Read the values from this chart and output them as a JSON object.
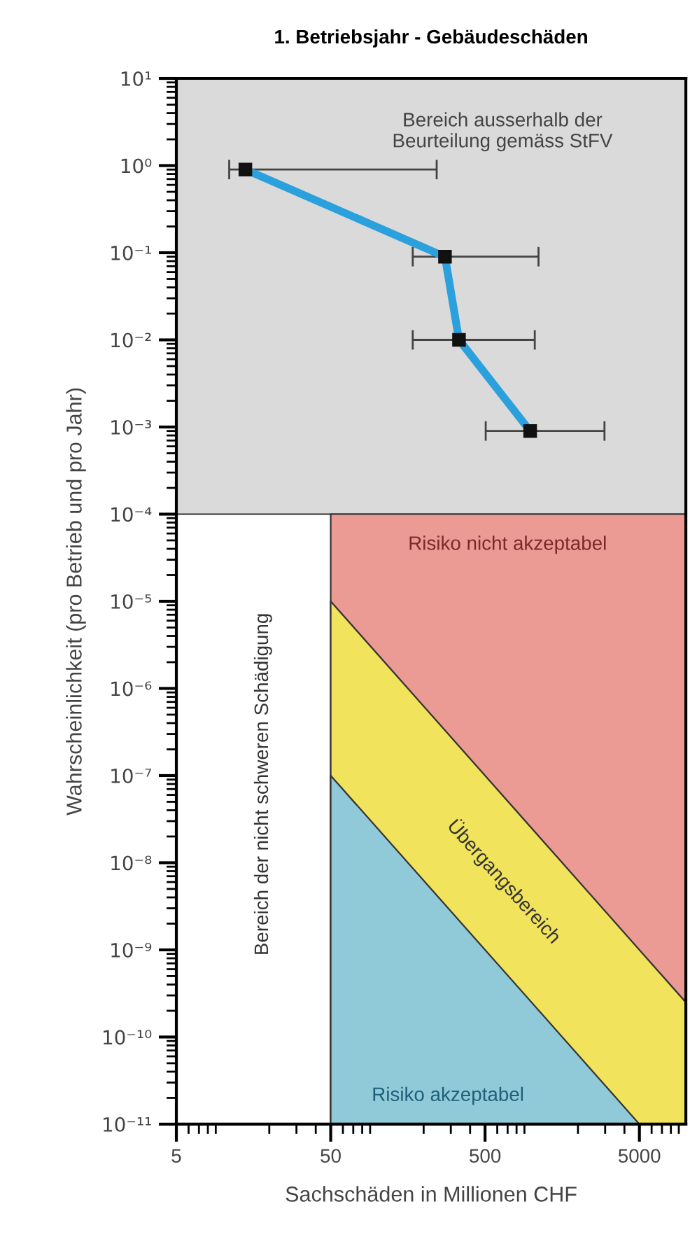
{
  "chart_data": {
    "type": "line",
    "title": "1. Betriebsjahr - Gebäudeschäden",
    "xlabel": "Sachschäden in Millionen CHF",
    "ylabel": "Wahrscheinlichkeit (pro Betrieb und pro Jahr)",
    "log": "xy",
    "xlim": [
      5,
      10000
    ],
    "ylim": [
      1e-11,
      10
    ],
    "xticks": [
      5,
      50,
      500,
      5000
    ],
    "yticks": [
      {
        "value": 10,
        "label": "10¹"
      },
      {
        "value": 1,
        "label": "10⁰"
      },
      {
        "value": 0.1,
        "label": "10⁻¹"
      },
      {
        "value": 0.01,
        "label": "10⁻²"
      },
      {
        "value": 0.001,
        "label": "10⁻³"
      },
      {
        "value": 0.0001,
        "label": "10⁻⁴"
      },
      {
        "value": 1e-05,
        "label": "10⁻⁵"
      },
      {
        "value": 1e-06,
        "label": "10⁻⁶"
      },
      {
        "value": 1e-07,
        "label": "10⁻⁷"
      },
      {
        "value": 1e-08,
        "label": "10⁻⁸"
      },
      {
        "value": 1e-09,
        "label": "10⁻⁹"
      },
      {
        "value": 1e-10,
        "label": "10⁻¹⁰"
      },
      {
        "value": 1e-11,
        "label": "10⁻¹¹"
      }
    ],
    "grid": false,
    "series": [
      {
        "type": "area",
        "color": "#eb9a94",
        "x": [
          50,
          10000
        ],
        "values": [
          0.0001,
          0.0001
        ]
      },
      {
        "type": "area",
        "color": "#f1e35c",
        "x": [
          50,
          5000,
          10000
        ],
        "values": [
          1e-05,
          1e-09,
          2.5e-10
        ]
      },
      {
        "type": "area",
        "color": "#90cad9",
        "x": [
          50,
          5000
        ],
        "values": [
          1e-07,
          1e-11
        ]
      },
      {
        "color": "#2aa0dc",
        "marker": "square",
        "x": [
          14,
          275,
          339,
          980
        ],
        "values": [
          0.9,
          0.09,
          0.01,
          0.0009
        ],
        "xerrors": [
          [
            11,
            243
          ],
          [
            170,
            1110
          ],
          [
            170,
            1050
          ],
          [
            505,
            2970
          ]
        ]
      }
    ],
    "bands": [
      {
        "axis": "y",
        "from": 0.0001,
        "to": 10,
        "color": "#dadada"
      }
    ],
    "annotations": [
      "Bereich ausserhalb der\nBeurteilung gemäss StFV",
      "Risiko nicht akzeptabel",
      "Bereich der nicht schweren Schädigung",
      "Übergangsbereich",
      "Risiko akzeptabel"
    ]
  }
}
